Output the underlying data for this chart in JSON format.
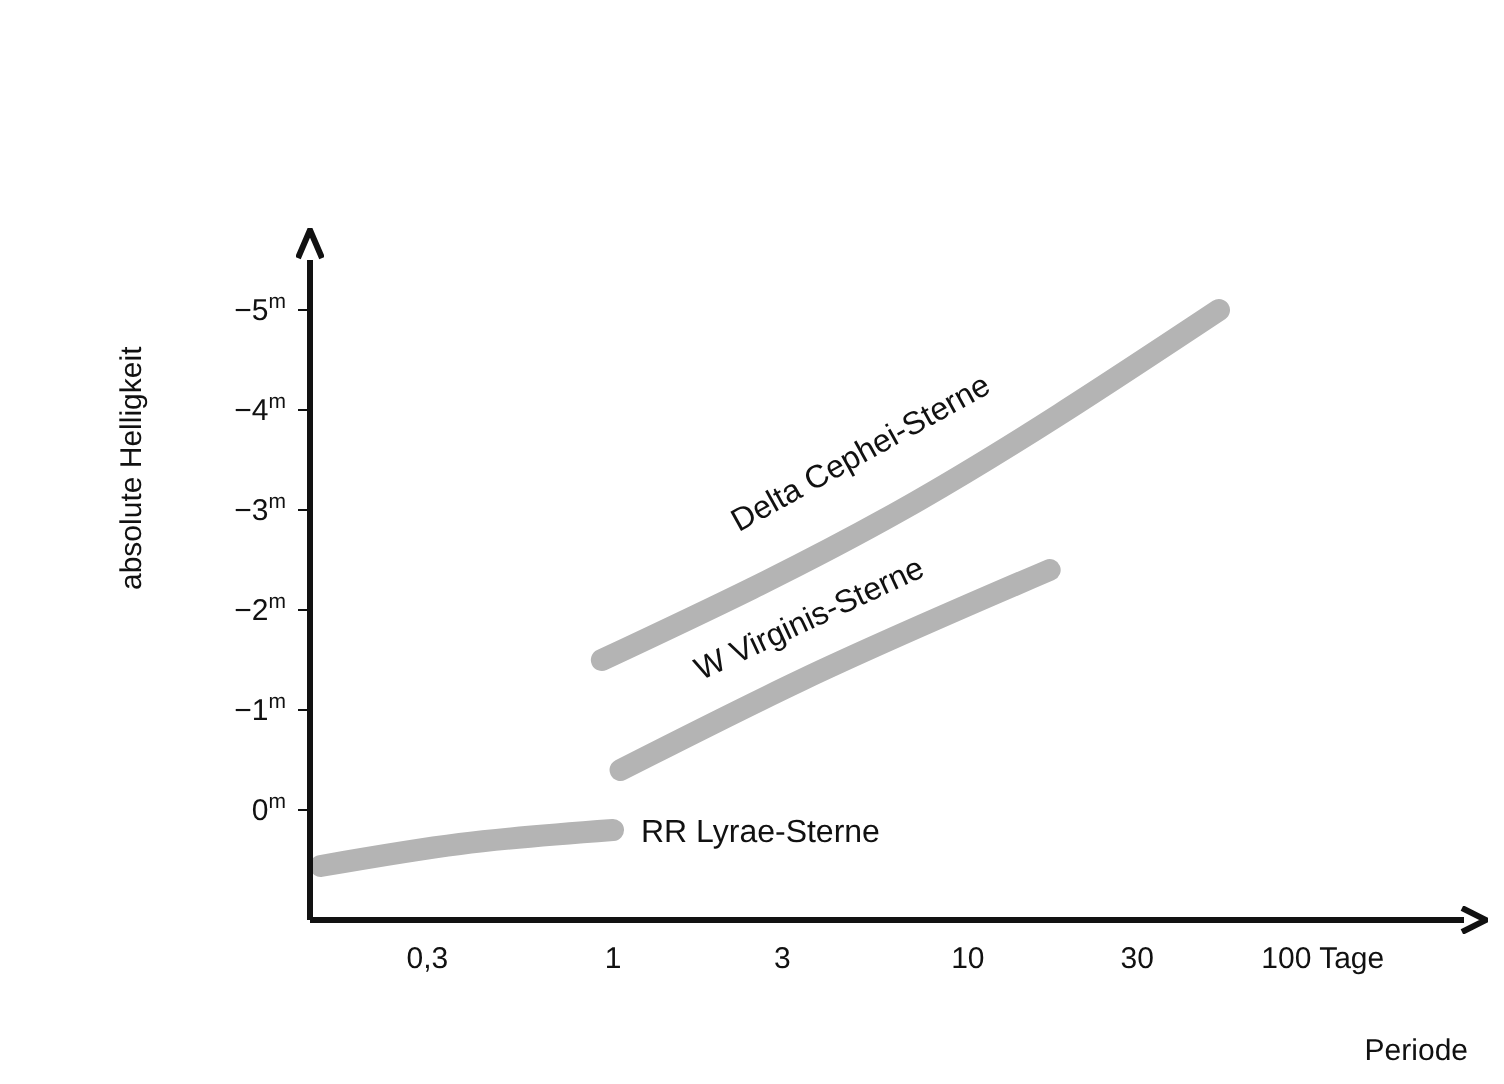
{
  "chart_data": {
    "type": "line",
    "xlabel": "Periode",
    "ylabel": "absolute Helligkeit",
    "log": "x",
    "xlim": [
      0.14,
      250
    ],
    "xticks": [
      {
        "value": 0.3,
        "label": "0,3"
      },
      1,
      3,
      10,
      30,
      {
        "value": 100,
        "label": "100 Tage"
      }
    ],
    "ylim": [
      1.1,
      -5.5
    ],
    "yticks": [
      {
        "value": -5,
        "label": "−5$^{m}$"
      },
      {
        "value": -4,
        "label": "−4$^{m}$"
      },
      {
        "value": -3,
        "label": "−3$^{m}$"
      },
      {
        "value": -2,
        "label": "−2$^{m}$"
      },
      {
        "value": -1,
        "label": "−1$^{m}$"
      },
      {
        "value": 0,
        "label": "0$^{m}$"
      }
    ],
    "grid": false,
    "legend": false,
    "marker": "none",
    "line_style": "solid",
    "series": [
      {
        "name": "RR Lyrae-Sterne",
        "color": "#b4b4b4",
        "x": [
          0.15,
          0.37,
          1.0
        ],
        "values": [
          0.56,
          0.34,
          0.2
        ]
      },
      {
        "name": "W Virginis-Sterne",
        "color": "#b4b4b4",
        "x": [
          1.05,
          3.4,
          17
        ],
        "values": [
          -0.4,
          -1.3,
          -2.4
        ]
      },
      {
        "name": "Delta Cephei-Sterne",
        "color": "#b4b4b4",
        "x": [
          0.93,
          6.5,
          51
        ],
        "values": [
          -1.5,
          -3.0,
          -5.0
        ]
      }
    ]
  }
}
